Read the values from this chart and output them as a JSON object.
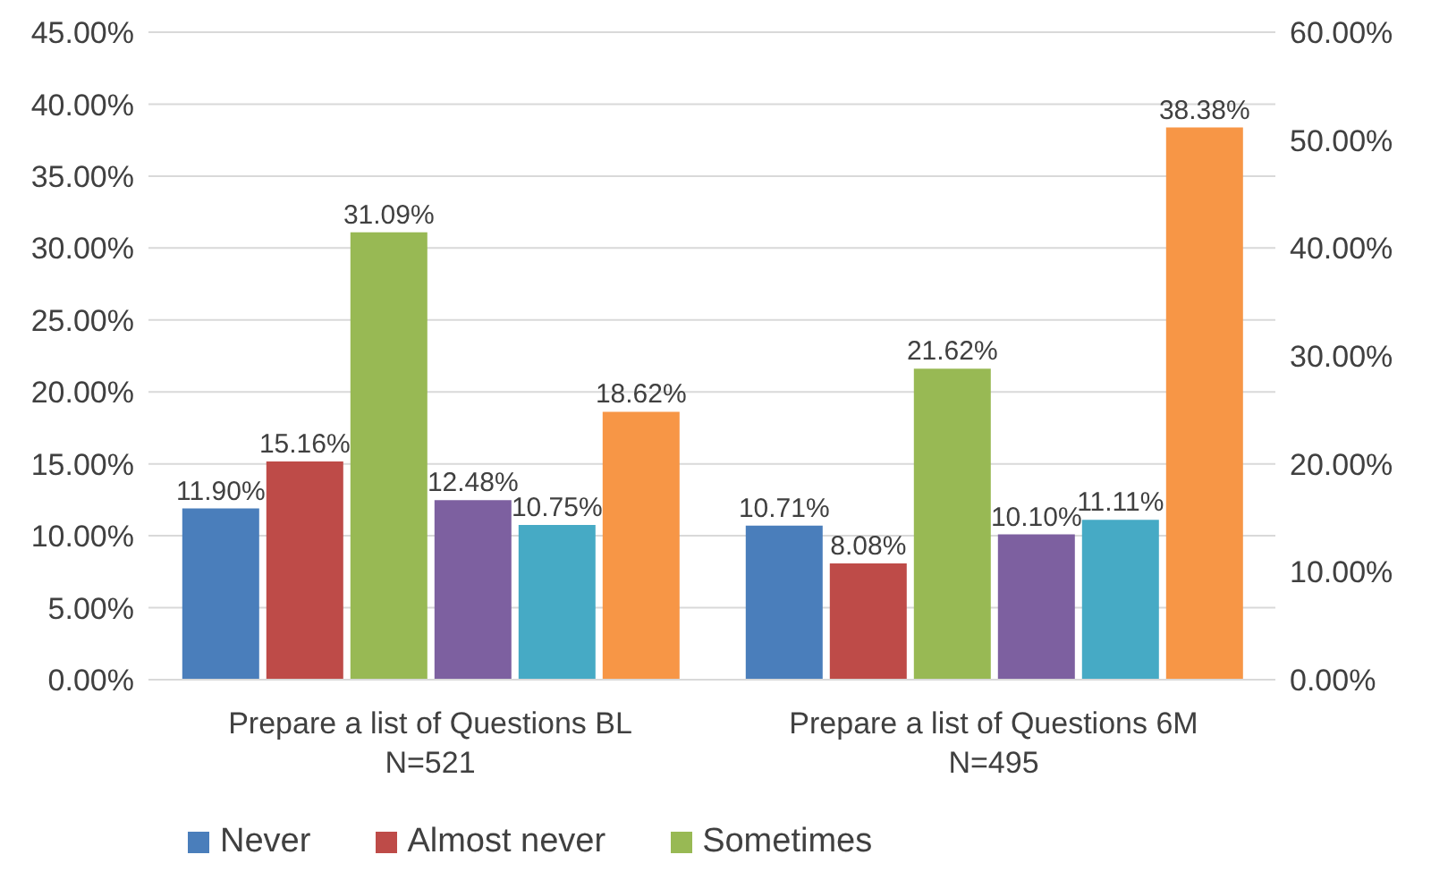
{
  "chart_data": {
    "type": "bar",
    "categories": [
      "Prepare a list of Questions BL\nN=521",
      "Prepare a list of Questions 6M\nN=495"
    ],
    "series": [
      {
        "name": "Never",
        "color": "#4a7ebb",
        "values": [
          11.9,
          10.71
        ],
        "value_labels": [
          "11.90%",
          "10.71%"
        ]
      },
      {
        "name": "Almost never",
        "color": "#be4b48",
        "values": [
          15.16,
          8.08
        ],
        "value_labels": [
          "15.16%",
          "8.08%"
        ]
      },
      {
        "name": "Sometimes",
        "color": "#98b954",
        "values": [
          31.09,
          21.62
        ],
        "value_labels": [
          "31.09%",
          "21.62%"
        ]
      },
      {
        "color": "#7d60a0",
        "values": [
          12.48,
          10.1
        ],
        "value_labels": [
          "12.48%",
          "10.10%"
        ]
      },
      {
        "color": "#46aac5",
        "values": [
          10.75,
          11.11
        ],
        "value_labels": [
          "10.75%",
          "11.11%"
        ]
      },
      {
        "color": "#f79646",
        "values": [
          18.62,
          38.38
        ],
        "value_labels": [
          "18.62%",
          "38.38%"
        ]
      }
    ],
    "ylim": [
      0,
      45
    ],
    "yticks": [
      {
        "value": 0,
        "label": "0.00%"
      },
      {
        "value": 5,
        "label": "5.00%"
      },
      {
        "value": 10,
        "label": "10.00%"
      },
      {
        "value": 15,
        "label": "15.00%"
      },
      {
        "value": 20,
        "label": "20.00%"
      },
      {
        "value": 25,
        "label": "25.00%"
      },
      {
        "value": 30,
        "label": "30.00%"
      },
      {
        "value": 35,
        "label": "35.00%"
      },
      {
        "value": 40,
        "label": "40.00%"
      },
      {
        "value": 45,
        "label": "45.00%"
      }
    ],
    "y2lim": [
      0,
      60
    ],
    "y2ticks": [
      {
        "value": 0,
        "label": "0.00%"
      },
      {
        "value": 10,
        "label": "10.00%"
      },
      {
        "value": 20,
        "label": "20.00%"
      },
      {
        "value": 30,
        "label": "30.00%"
      },
      {
        "value": 40,
        "label": "40.00%"
      },
      {
        "value": 50,
        "label": "50.00%"
      },
      {
        "value": 60,
        "label": "60.00%"
      }
    ],
    "grid": "y",
    "legend": "bottom"
  }
}
